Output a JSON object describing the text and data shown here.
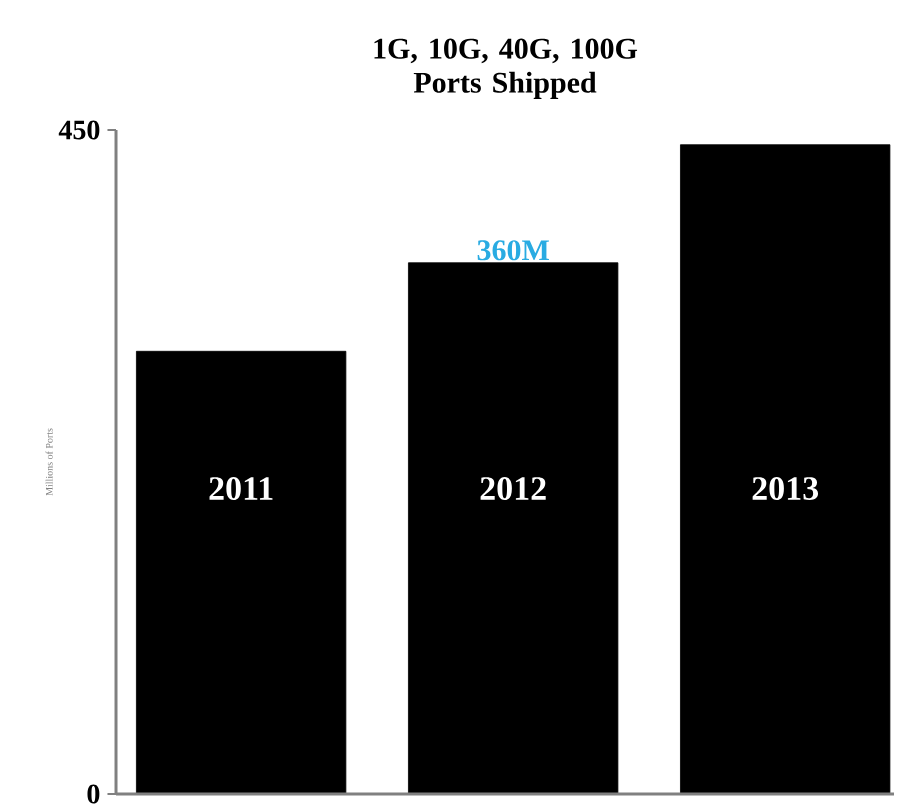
{
  "chart_data": {
    "type": "bar",
    "title": "1G, 10G, 40G, 100G Ports Shipped",
    "ylabel": "Millions of Ports",
    "categories": [
      "2011",
      "2012",
      "2013"
    ],
    "values": [
      300,
      360,
      440
    ],
    "color": "#000000",
    "value_labels": [
      null,
      "360M",
      null
    ],
    "ylim": [
      0,
      450
    ],
    "yticks": [
      0,
      450
    ],
    "grid": false
  }
}
